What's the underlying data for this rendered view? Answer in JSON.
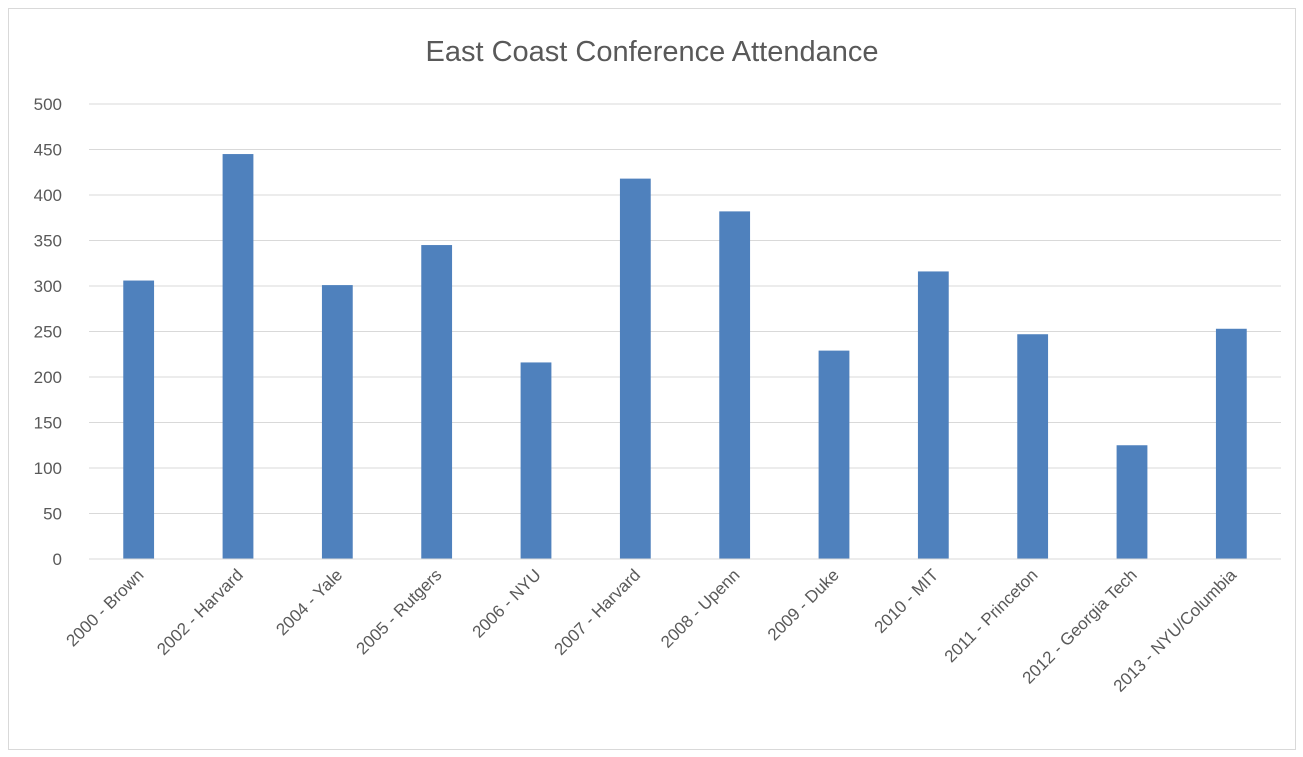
{
  "chart_data": {
    "type": "bar",
    "title": "East Coast Conference Attendance",
    "xlabel": "",
    "ylabel": "",
    "categories": [
      "2000 - Brown",
      "2002 - Harvard",
      "2004 - Yale",
      "2005 - Rutgers",
      "2006 - NYU",
      "2007 - Harvard",
      "2008 - Upenn",
      "2009 - Duke",
      "2010 - MIT",
      "2011 - Princeton",
      "2012 - Georgia Tech",
      "2013 - NYU/Columbia"
    ],
    "values": [
      306,
      445,
      301,
      345,
      216,
      418,
      382,
      229,
      316,
      247,
      125,
      253
    ],
    "ylim": [
      0,
      500
    ],
    "yticks": [
      "0",
      "50",
      "100",
      "150",
      "200",
      "250",
      "300",
      "350",
      "400",
      "450",
      "500"
    ],
    "grid": true,
    "legend": "none",
    "bar_color": "#4f81bd",
    "grid_color": "#d9d9d9",
    "text_color": "#595959"
  }
}
